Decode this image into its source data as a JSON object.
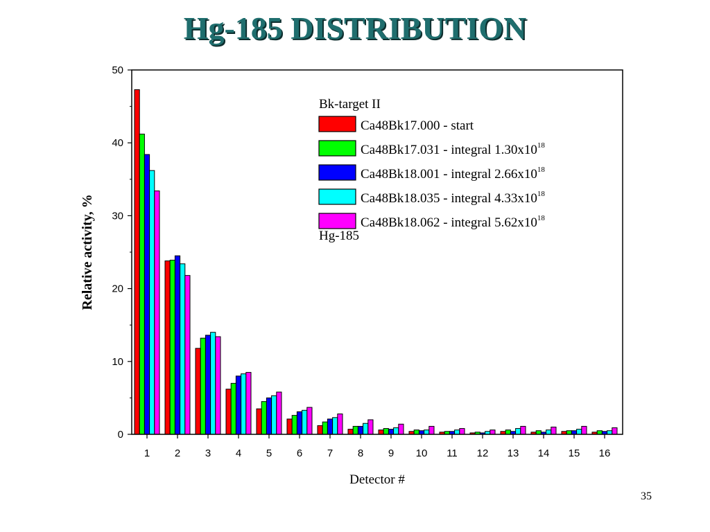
{
  "slide": {
    "title": "Hg-185 DISTRIBUTION",
    "page_number": "35"
  },
  "chart_data": {
    "type": "bar",
    "title": "",
    "xlabel": "Detector #",
    "ylabel": "Relative activity, %",
    "ylim": [
      0,
      50
    ],
    "yticks": [
      0,
      10,
      20,
      30,
      40,
      50
    ],
    "grid": false,
    "legend_position": "top-right",
    "legend_header": "Bk-target II",
    "legend_footer": "Hg-185",
    "categories": [
      "1",
      "2",
      "3",
      "4",
      "5",
      "6",
      "7",
      "8",
      "9",
      "10",
      "11",
      "12",
      "13",
      "14",
      "15",
      "16"
    ],
    "series": [
      {
        "name": "Ca48Bk17.000 - start",
        "sup": "",
        "color": "#ff0000",
        "values": [
          47.3,
          23.8,
          11.8,
          6.2,
          3.5,
          2.1,
          1.2,
          0.7,
          0.6,
          0.4,
          0.3,
          0.2,
          0.4,
          0.3,
          0.4,
          0.3
        ]
      },
      {
        "name": "Ca48Bk17.031 - integral 1.30x10",
        "sup": "18",
        "color": "#00ff00",
        "values": [
          41.2,
          23.9,
          13.2,
          7.0,
          4.5,
          2.6,
          1.7,
          1.1,
          0.8,
          0.6,
          0.4,
          0.3,
          0.6,
          0.5,
          0.5,
          0.5
        ]
      },
      {
        "name": "Ca48Bk18.001 - integral 2.66x10",
        "sup": "18",
        "color": "#0000ff",
        "values": [
          38.4,
          24.5,
          13.6,
          8.0,
          5.0,
          3.1,
          2.1,
          1.1,
          0.7,
          0.5,
          0.4,
          0.2,
          0.4,
          0.3,
          0.5,
          0.4
        ]
      },
      {
        "name": "Ca48Bk18.035 - integral 4.33x10",
        "sup": "18",
        "color": "#00ffff",
        "values": [
          36.2,
          23.4,
          14.0,
          8.3,
          5.3,
          3.3,
          2.3,
          1.5,
          0.9,
          0.6,
          0.6,
          0.4,
          0.8,
          0.6,
          0.7,
          0.5
        ]
      },
      {
        "name": "Ca48Bk18.062 - integral 5.62x10",
        "sup": "18",
        "color": "#ff00ff",
        "values": [
          33.4,
          21.8,
          13.4,
          8.5,
          5.8,
          3.7,
          2.8,
          2.0,
          1.4,
          1.1,
          0.8,
          0.6,
          1.1,
          1.0,
          1.1,
          0.9
        ]
      }
    ]
  }
}
